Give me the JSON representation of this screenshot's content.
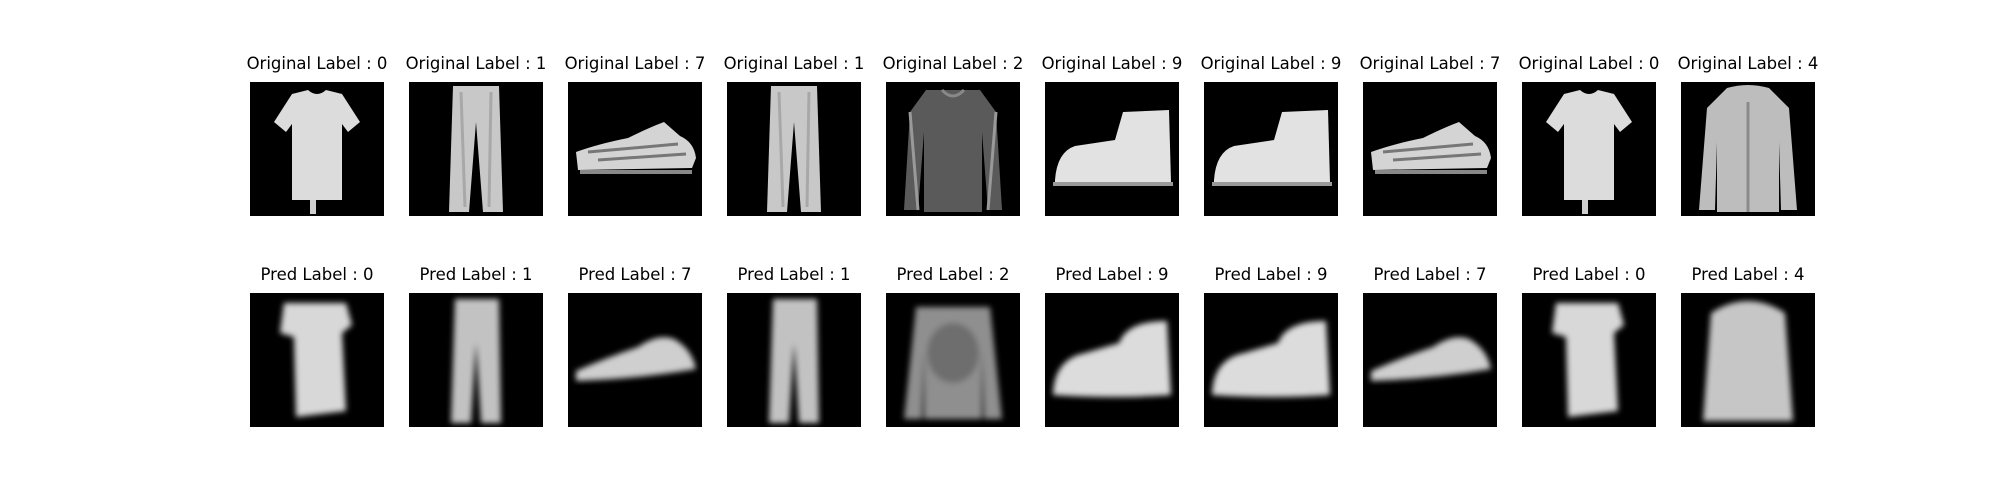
{
  "figure": {
    "rows": [
      {
        "id": "original",
        "items": [
          {
            "title": "Original Label : 0",
            "icon": "tshirt-icon"
          },
          {
            "title": "Original Label : 1",
            "icon": "trouser-icon"
          },
          {
            "title": "Original Label : 7",
            "icon": "sneaker-icon"
          },
          {
            "title": "Original Label : 1",
            "icon": "trouser-icon"
          },
          {
            "title": "Original Label : 2",
            "icon": "pullover-icon"
          },
          {
            "title": "Original Label : 9",
            "icon": "ankle-boot-icon"
          },
          {
            "title": "Original Label : 9",
            "icon": "ankle-boot-icon"
          },
          {
            "title": "Original Label : 7",
            "icon": "sneaker-icon"
          },
          {
            "title": "Original Label : 0",
            "icon": "tshirt-icon"
          },
          {
            "title": "Original Label : 4",
            "icon": "coat-icon"
          }
        ]
      },
      {
        "id": "pred",
        "items": [
          {
            "title": "Pred Label : 0",
            "icon": "tshirt-icon"
          },
          {
            "title": "Pred Label : 1",
            "icon": "trouser-icon"
          },
          {
            "title": "Pred Label : 7",
            "icon": "sneaker-icon"
          },
          {
            "title": "Pred Label : 1",
            "icon": "trouser-icon"
          },
          {
            "title": "Pred Label : 2",
            "icon": "pullover-icon"
          },
          {
            "title": "Pred Label : 9",
            "icon": "ankle-boot-icon"
          },
          {
            "title": "Pred Label : 9",
            "icon": "ankle-boot-icon"
          },
          {
            "title": "Pred Label : 7",
            "icon": "sneaker-icon"
          },
          {
            "title": "Pred Label : 0",
            "icon": "tshirt-icon"
          },
          {
            "title": "Pred Label : 4",
            "icon": "coat-icon"
          }
        ]
      }
    ]
  }
}
